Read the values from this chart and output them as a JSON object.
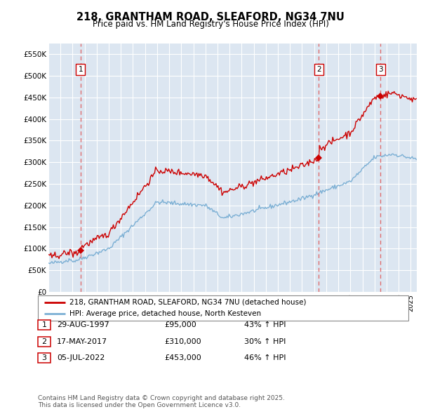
{
  "title": "218, GRANTHAM ROAD, SLEAFORD, NG34 7NU",
  "subtitle": "Price paid vs. HM Land Registry's House Price Index (HPI)",
  "ylim": [
    0,
    575000
  ],
  "yticks": [
    0,
    50000,
    100000,
    150000,
    200000,
    250000,
    300000,
    350000,
    400000,
    450000,
    500000,
    550000
  ],
  "ytick_labels": [
    "£0",
    "£50K",
    "£100K",
    "£150K",
    "£200K",
    "£250K",
    "£300K",
    "£350K",
    "£400K",
    "£450K",
    "£500K",
    "£550K"
  ],
  "xlim_start": 1995.0,
  "xlim_end": 2025.5,
  "sale_dates": [
    "29-AUG-1997",
    "17-MAY-2017",
    "05-JUL-2022"
  ],
  "sale_prices": [
    95000,
    310000,
    453000
  ],
  "sale_times": [
    1997.667,
    2017.375,
    2022.5
  ],
  "sale_labels": [
    "1",
    "2",
    "3"
  ],
  "sale_pct": [
    "43% ↑ HPI",
    "30% ↑ HPI",
    "46% ↑ HPI"
  ],
  "legend_property": "218, GRANTHAM ROAD, SLEAFORD, NG34 7NU (detached house)",
  "legend_hpi": "HPI: Average price, detached house, North Kesteven",
  "footnote_line1": "Contains HM Land Registry data © Crown copyright and database right 2025.",
  "footnote_line2": "This data is licensed under the Open Government Licence v3.0.",
  "property_color": "#cc0000",
  "hpi_color": "#7bafd4",
  "plot_bg": "#dce6f1",
  "grid_color": "#ffffff",
  "dashed_line_color": "#e06060",
  "fig_bg": "#ffffff"
}
